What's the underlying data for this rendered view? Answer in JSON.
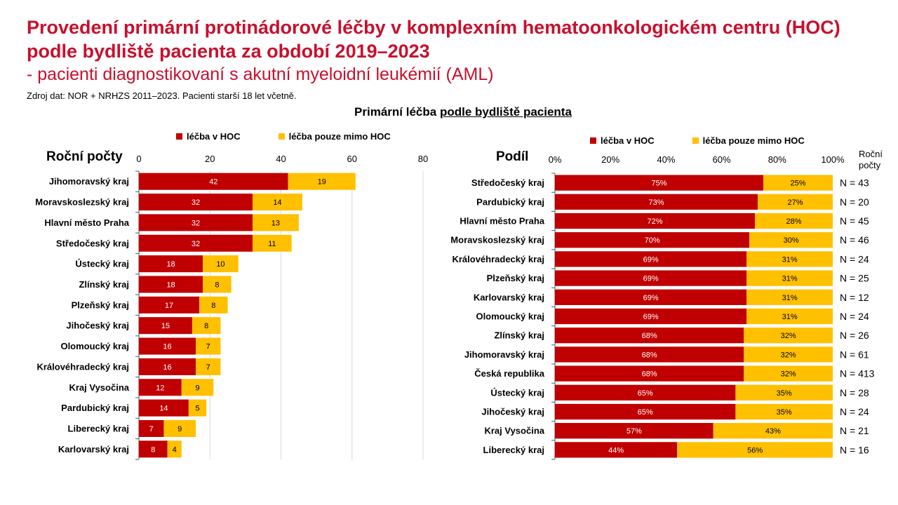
{
  "title": "Provedení primární protinádorové léčby v komplexním hematoonkologickém centru (HOC) podle bydliště pacienta za období 2019–2023",
  "subtitle": "- pacienti diagnostikovaní s akutní myeloidní leukémií (AML)",
  "source": "Zdroj dat: NOR + NRHZS 2011–2023. Pacienti starší 18 let včetně.",
  "section_title_a": "Primární léčba ",
  "section_title_b": "podle bydliště pacienta",
  "legend": {
    "hoc": "léčba v HOC",
    "mimo": "léčba pouze mimo HOC"
  },
  "colors": {
    "hoc": "#c00000",
    "mimo": "#ffc000"
  },
  "right_extra_header_line1": "Roční",
  "right_extra_header_line2": "počty",
  "chart_data": [
    {
      "type": "bar",
      "orientation": "horizontal",
      "stacked": true,
      "title": "Roční počty",
      "categories": [
        "Jihomoravský kraj",
        "Moravskoslezský kraj",
        "Hlavní město Praha",
        "Středočeský kraj",
        "Ústecký kraj",
        "Zlínský kraj",
        "Plzeňský kraj",
        "Jihočeský kraj",
        "Olomoucký kraj",
        "Královéhradecký kraj",
        "Kraj Vysočina",
        "Pardubický kraj",
        "Liberecký kraj",
        "Karlovarský kraj"
      ],
      "series": [
        {
          "name": "léčba v HOC",
          "values": [
            42,
            32,
            32,
            32,
            18,
            18,
            17,
            15,
            16,
            16,
            12,
            14,
            7,
            8
          ]
        },
        {
          "name": "léčba pouze mimo HOC",
          "values": [
            19,
            14,
            13,
            11,
            10,
            8,
            8,
            8,
            7,
            7,
            9,
            5,
            9,
            4
          ]
        }
      ],
      "xlim": [
        0,
        80
      ],
      "xticks": [
        "0",
        "20",
        "40",
        "60",
        "80"
      ],
      "grid": true,
      "legend_position": "top"
    },
    {
      "type": "bar",
      "orientation": "horizontal",
      "stacked": true,
      "percent": true,
      "title": "Podíl",
      "categories": [
        "Středočeský kraj",
        "Pardubický kraj",
        "Hlavní město Praha",
        "Moravskoslezský kraj",
        "Královéhradecký kraj",
        "Plzeňský kraj",
        "Karlovarský kraj",
        "Olomoucký kraj",
        "Zlínský kraj",
        "Jihomoravský kraj",
        "Česká republika",
        "Ústecký kraj",
        "Jihočeský kraj",
        "Kraj Vysočina",
        "Liberecký kraj"
      ],
      "series": [
        {
          "name": "léčba v HOC",
          "values": [
            75,
            73,
            72,
            70,
            69,
            69,
            69,
            69,
            68,
            68,
            68,
            65,
            65,
            57,
            44
          ]
        },
        {
          "name": "léčba pouze mimo HOC",
          "values": [
            25,
            27,
            28,
            30,
            31,
            31,
            31,
            31,
            32,
            32,
            32,
            35,
            35,
            43,
            56
          ]
        }
      ],
      "counts": [
        "N = 43",
        "N = 20",
        "N = 45",
        "N = 46",
        "N = 24",
        "N = 25",
        "N = 12",
        "N = 24",
        "N = 26",
        "N = 61",
        "N = 413",
        "N = 28",
        "N = 24",
        "N = 21",
        "N = 16"
      ],
      "xlim": [
        0,
        100
      ],
      "xticks": [
        "0%",
        "20%",
        "40%",
        "60%",
        "80%",
        "100%"
      ],
      "grid": false,
      "legend_position": "top"
    }
  ]
}
